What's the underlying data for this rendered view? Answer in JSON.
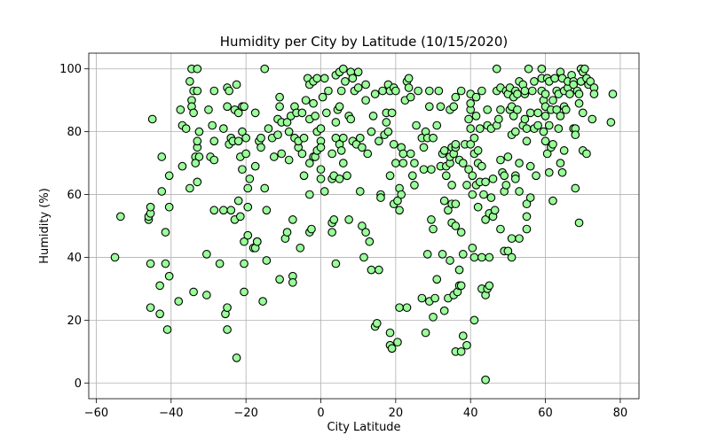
{
  "chart_data": {
    "type": "scatter",
    "title": "Humidity per City by Latitude (10/15/2020)",
    "xlabel": "City Latitude",
    "ylabel": "Humidity (%)",
    "xlim": [
      -62,
      85
    ],
    "ylim": [
      -5,
      105
    ],
    "xticks": [
      -60,
      -40,
      -20,
      0,
      20,
      40,
      60,
      80
    ],
    "yticks": [
      0,
      20,
      40,
      60,
      80,
      100
    ],
    "grid": true,
    "marker_color": "#99ff99",
    "marker_edge": "#000000",
    "points": [
      [
        -55,
        40
      ],
      [
        -53.5,
        53
      ],
      [
        -46,
        52
      ],
      [
        -46,
        53
      ],
      [
        -45.5,
        54
      ],
      [
        -45.5,
        56
      ],
      [
        -45.5,
        24
      ],
      [
        -45.5,
        38
      ],
      [
        -45,
        84
      ],
      [
        -42.5,
        61
      ],
      [
        -42.5,
        72
      ],
      [
        -43,
        31
      ],
      [
        -43,
        22
      ],
      [
        -41.5,
        48
      ],
      [
        -41.5,
        38
      ],
      [
        -40.5,
        56
      ],
      [
        -40.5,
        66
      ],
      [
        -41,
        17
      ],
      [
        -40.5,
        34
      ],
      [
        -38,
        26
      ],
      [
        -37.5,
        87
      ],
      [
        -37,
        82
      ],
      [
        -37,
        69
      ],
      [
        -36,
        81
      ],
      [
        -35,
        96
      ],
      [
        -34.5,
        100
      ],
      [
        -34.5,
        90
      ],
      [
        -34.5,
        88
      ],
      [
        -34,
        86
      ],
      [
        -33.5,
        72
      ],
      [
        -35,
        62
      ],
      [
        -34,
        29
      ],
      [
        -34,
        93
      ],
      [
        -33,
        93
      ],
      [
        -33,
        100
      ],
      [
        -33,
        64
      ],
      [
        -33,
        75
      ],
      [
        -33,
        77
      ],
      [
        -32.5,
        80
      ],
      [
        -32.5,
        72
      ],
      [
        -33.5,
        70
      ],
      [
        -30.5,
        28
      ],
      [
        -30,
        87
      ],
      [
        -30.5,
        41
      ],
      [
        -29.5,
        72
      ],
      [
        -29,
        82
      ],
      [
        -28.5,
        93
      ],
      [
        -28.5,
        55
      ],
      [
        -28.5,
        77
      ],
      [
        -28.5,
        71
      ],
      [
        -27,
        38
      ],
      [
        -26,
        81
      ],
      [
        -26,
        55
      ],
      [
        -25.5,
        22
      ],
      [
        -25,
        24
      ],
      [
        -25,
        17
      ],
      [
        -25,
        94
      ],
      [
        -25,
        88
      ],
      [
        -24.5,
        93
      ],
      [
        -24.5,
        76
      ],
      [
        -24,
        78
      ],
      [
        -24,
        55
      ],
      [
        -23.5,
        77
      ],
      [
        -23,
        52
      ],
      [
        -23,
        87
      ],
      [
        -22.5,
        8
      ],
      [
        -22.5,
        95
      ],
      [
        -22,
        86
      ],
      [
        -22,
        77
      ],
      [
        -22,
        58
      ],
      [
        -21.5,
        72
      ],
      [
        -21.5,
        53
      ],
      [
        -21,
        68
      ],
      [
        -21,
        88
      ],
      [
        -21,
        80
      ],
      [
        -20.5,
        88
      ],
      [
        -20.5,
        45
      ],
      [
        -20.5,
        38
      ],
      [
        -20.5,
        29
      ],
      [
        -20,
        78
      ],
      [
        -20,
        73
      ],
      [
        -19.5,
        62
      ],
      [
        -19.5,
        56
      ],
      [
        -19.5,
        47
      ],
      [
        -19,
        65
      ],
      [
        -18,
        43
      ],
      [
        -17.5,
        86
      ],
      [
        -17.5,
        69
      ],
      [
        -17.5,
        43
      ],
      [
        -17,
        45
      ],
      [
        -17,
        45
      ],
      [
        -16.5,
        77
      ],
      [
        -16,
        78
      ],
      [
        -16,
        75
      ],
      [
        -15.5,
        26
      ],
      [
        -15,
        100
      ],
      [
        -15,
        62
      ],
      [
        -14.5,
        39
      ],
      [
        -14.5,
        55
      ],
      [
        -14,
        81
      ],
      [
        -13,
        78
      ],
      [
        -12.5,
        72
      ],
      [
        -11.5,
        84
      ],
      [
        -11.5,
        79
      ],
      [
        -11,
        91
      ],
      [
        -11,
        88
      ],
      [
        -11,
        33
      ],
      [
        -10.5,
        73
      ],
      [
        -10.5,
        83
      ],
      [
        -9.5,
        46
      ],
      [
        -9,
        48
      ],
      [
        -9,
        83
      ],
      [
        -8.5,
        71
      ],
      [
        -8.5,
        80
      ],
      [
        -8,
        85
      ],
      [
        -7.5,
        52
      ],
      [
        -7.5,
        34
      ],
      [
        -7.5,
        32
      ],
      [
        -7,
        88
      ],
      [
        -7,
        78
      ],
      [
        -6.5,
        86
      ],
      [
        -6,
        75
      ],
      [
        -6,
        77
      ],
      [
        -5.5,
        43
      ],
      [
        -5,
        73
      ],
      [
        -5,
        86
      ],
      [
        -4.5,
        66
      ],
      [
        -4.5,
        78
      ],
      [
        -4,
        90
      ],
      [
        -3.5,
        97
      ],
      [
        -3,
        95
      ],
      [
        -3,
        60
      ],
      [
        -3,
        84
      ],
      [
        -3,
        70
      ],
      [
        -3,
        48
      ],
      [
        -2.5,
        49
      ],
      [
        -2,
        96
      ],
      [
        -2,
        89
      ],
      [
        -2,
        72
      ],
      [
        -1.5,
        72
      ],
      [
        -1.5,
        85
      ],
      [
        -1,
        97
      ],
      [
        -1,
        74
      ],
      [
        -1,
        80
      ],
      [
        0,
        77
      ],
      [
        0,
        65
      ],
      [
        0,
        75
      ],
      [
        0,
        81
      ],
      [
        0,
        68
      ],
      [
        0.5,
        91
      ],
      [
        1,
        61
      ],
      [
        1,
        97
      ],
      [
        1.5,
        86
      ],
      [
        2,
        93
      ],
      [
        3,
        48
      ],
      [
        3,
        51
      ],
      [
        3,
        73
      ],
      [
        3,
        65
      ],
      [
        3.5,
        52
      ],
      [
        3.5,
        66
      ],
      [
        4,
        38
      ],
      [
        4,
        78
      ],
      [
        4,
        98
      ],
      [
        4,
        83
      ],
      [
        4.5,
        87
      ],
      [
        5,
        88
      ],
      [
        5,
        99
      ],
      [
        5,
        65
      ],
      [
        5,
        76
      ],
      [
        5.5,
        93
      ],
      [
        5.5,
        74
      ],
      [
        6,
        100
      ],
      [
        6,
        78
      ],
      [
        6,
        70
      ],
      [
        6.5,
        96
      ],
      [
        7,
        66
      ],
      [
        7.5,
        85
      ],
      [
        7.5,
        52
      ],
      [
        8,
        99
      ],
      [
        8,
        84
      ],
      [
        8.5,
        97
      ],
      [
        8.5,
        77
      ],
      [
        9,
        93
      ],
      [
        9.5,
        76
      ],
      [
        10,
        99
      ],
      [
        10,
        94
      ],
      [
        10.5,
        61
      ],
      [
        10.5,
        78
      ],
      [
        11,
        75
      ],
      [
        11,
        50
      ],
      [
        11.5,
        40
      ],
      [
        12,
        95
      ],
      [
        12,
        90
      ],
      [
        12,
        48
      ],
      [
        12.5,
        73
      ],
      [
        13,
        45
      ],
      [
        13.5,
        36
      ],
      [
        13.5,
        80
      ],
      [
        14,
        85
      ],
      [
        14.5,
        92
      ],
      [
        14.5,
        18
      ],
      [
        15,
        19
      ],
      [
        15.5,
        36
      ],
      [
        15.5,
        77
      ],
      [
        16,
        60
      ],
      [
        16,
        59
      ],
      [
        16.5,
        93
      ],
      [
        17,
        79
      ],
      [
        17.5,
        83
      ],
      [
        17.5,
        86
      ],
      [
        18,
        95
      ],
      [
        18,
        80
      ],
      [
        18.5,
        93
      ],
      [
        18.5,
        66
      ],
      [
        18.5,
        12
      ],
      [
        18.5,
        16
      ],
      [
        19,
        11
      ],
      [
        19,
        86
      ],
      [
        19.5,
        94
      ],
      [
        19.5,
        76
      ],
      [
        19.5,
        57
      ],
      [
        20,
        70
      ],
      [
        20,
        93
      ],
      [
        20.5,
        58
      ],
      [
        20.5,
        13
      ],
      [
        21,
        24
      ],
      [
        21,
        55
      ],
      [
        21,
        62
      ],
      [
        21.5,
        60
      ],
      [
        21.5,
        75
      ],
      [
        22,
        73
      ],
      [
        22,
        70
      ],
      [
        22.5,
        90
      ],
      [
        23,
        24
      ],
      [
        23,
        96
      ],
      [
        23.5,
        94
      ],
      [
        23.5,
        97
      ],
      [
        24,
        91
      ],
      [
        24,
        73
      ],
      [
        24.5,
        66
      ],
      [
        25,
        63
      ],
      [
        25,
        70
      ],
      [
        25.5,
        82
      ],
      [
        26,
        93
      ],
      [
        27,
        78
      ],
      [
        27,
        27
      ],
      [
        27.5,
        75
      ],
      [
        27.5,
        68
      ],
      [
        28,
        16
      ],
      [
        28,
        80
      ],
      [
        28.5,
        78
      ],
      [
        28.5,
        41
      ],
      [
        29,
        93
      ],
      [
        29,
        88
      ],
      [
        29,
        26
      ],
      [
        29.5,
        68
      ],
      [
        29.5,
        52
      ],
      [
        30,
        49
      ],
      [
        30,
        21
      ],
      [
        30,
        78
      ],
      [
        30.5,
        27
      ],
      [
        31,
        33
      ],
      [
        31,
        82
      ],
      [
        31.5,
        93
      ],
      [
        32,
        69
      ],
      [
        32,
        88
      ],
      [
        32.5,
        73
      ],
      [
        32.5,
        41
      ],
      [
        33,
        23
      ],
      [
        33,
        58
      ],
      [
        33,
        74
      ],
      [
        33.5,
        66
      ],
      [
        33.5,
        69
      ],
      [
        34,
        27
      ],
      [
        34,
        55
      ],
      [
        34.5,
        70
      ],
      [
        34.5,
        39
      ],
      [
        34.5,
        72
      ],
      [
        34.5,
        87
      ],
      [
        35,
        51
      ],
      [
        35,
        57
      ],
      [
        35,
        75
      ],
      [
        35,
        63
      ],
      [
        35.5,
        28
      ],
      [
        35.5,
        73
      ],
      [
        35.5,
        88
      ],
      [
        36,
        91
      ],
      [
        36,
        75
      ],
      [
        36,
        57
      ],
      [
        36,
        50
      ],
      [
        36,
        10
      ],
      [
        36,
        76
      ],
      [
        36.5,
        29
      ],
      [
        37,
        31
      ],
      [
        37,
        71
      ],
      [
        37,
        36
      ],
      [
        37.5,
        10
      ],
      [
        37.5,
        31
      ],
      [
        37.5,
        48
      ],
      [
        37.5,
        93
      ],
      [
        38,
        15
      ],
      [
        38,
        70
      ],
      [
        38,
        41
      ],
      [
        38.5,
        76
      ],
      [
        39,
        63
      ],
      [
        39,
        12
      ],
      [
        39.5,
        84
      ],
      [
        39.5,
        68
      ],
      [
        40,
        81
      ],
      [
        40,
        87
      ],
      [
        40,
        89
      ],
      [
        40,
        76
      ],
      [
        40,
        92
      ],
      [
        40.5,
        43
      ],
      [
        40.5,
        60
      ],
      [
        40.5,
        66
      ],
      [
        41,
        20
      ],
      [
        41,
        40
      ],
      [
        41,
        78
      ],
      [
        41,
        73
      ],
      [
        41.5,
        91
      ],
      [
        41.5,
        63
      ],
      [
        41.5,
        85
      ],
      [
        42,
        74
      ],
      [
        42,
        70
      ],
      [
        42,
        56
      ],
      [
        42.5,
        81
      ],
      [
        42.5,
        64
      ],
      [
        43,
        93
      ],
      [
        43,
        69
      ],
      [
        43,
        30
      ],
      [
        43,
        40
      ],
      [
        43.5,
        60
      ],
      [
        44,
        64
      ],
      [
        44,
        1
      ],
      [
        44,
        28
      ],
      [
        44,
        52
      ],
      [
        44.5,
        30
      ],
      [
        44.5,
        82
      ],
      [
        44.5,
        87
      ],
      [
        45,
        31
      ],
      [
        45,
        54
      ],
      [
        45,
        40
      ],
      [
        45.5,
        59
      ],
      [
        45.5,
        81
      ],
      [
        46,
        65
      ],
      [
        46,
        53
      ],
      [
        46.5,
        55
      ],
      [
        47,
        93
      ],
      [
        47,
        82
      ],
      [
        47,
        100
      ],
      [
        47.5,
        84
      ],
      [
        48,
        87
      ],
      [
        48,
        94
      ],
      [
        48,
        71
      ],
      [
        48,
        49
      ],
      [
        48.5,
        67
      ],
      [
        49,
        66
      ],
      [
        49,
        42
      ],
      [
        49,
        61
      ],
      [
        49.5,
        93
      ],
      [
        49.5,
        63
      ],
      [
        50,
        42
      ],
      [
        50,
        72
      ],
      [
        50,
        92
      ],
      [
        50.5,
        94
      ],
      [
        50.5,
        87
      ],
      [
        51,
        88
      ],
      [
        51,
        46
      ],
      [
        51,
        79
      ],
      [
        51,
        40
      ],
      [
        51.5,
        91
      ],
      [
        51.5,
        85
      ],
      [
        52,
        66
      ],
      [
        52,
        65
      ],
      [
        52,
        93
      ],
      [
        52,
        80
      ],
      [
        52.5,
        92
      ],
      [
        52.5,
        87
      ],
      [
        53,
        96
      ],
      [
        53,
        70
      ],
      [
        53,
        61
      ],
      [
        53,
        46
      ],
      [
        54,
        95
      ],
      [
        54,
        82
      ],
      [
        54.5,
        92
      ],
      [
        54.5,
        93
      ],
      [
        54.5,
        84
      ],
      [
        55,
        77
      ],
      [
        55,
        57
      ],
      [
        55,
        53
      ],
      [
        55,
        49
      ],
      [
        55,
        81
      ],
      [
        55.5,
        100
      ],
      [
        56,
        86
      ],
      [
        56,
        69
      ],
      [
        56,
        59
      ],
      [
        56.5,
        93
      ],
      [
        57,
        96
      ],
      [
        57,
        81
      ],
      [
        57.5,
        66
      ],
      [
        58,
        82
      ],
      [
        58,
        86
      ],
      [
        59,
        93
      ],
      [
        59,
        100
      ],
      [
        59,
        97
      ],
      [
        59.5,
        90
      ],
      [
        59.5,
        80
      ],
      [
        60,
        85
      ],
      [
        60,
        92
      ],
      [
        60,
        88
      ],
      [
        60,
        77
      ],
      [
        60.5,
        97
      ],
      [
        60.5,
        73
      ],
      [
        61,
        67
      ],
      [
        61,
        82
      ],
      [
        61,
        96
      ],
      [
        61.5,
        87
      ],
      [
        61.5,
        75
      ],
      [
        62,
        58
      ],
      [
        62,
        76
      ],
      [
        62,
        90
      ],
      [
        62.5,
        97
      ],
      [
        63,
        87
      ],
      [
        63,
        93
      ],
      [
        63.5,
        92
      ],
      [
        63.5,
        81
      ],
      [
        64,
        99
      ],
      [
        64,
        85
      ],
      [
        64,
        70
      ],
      [
        64.5,
        97
      ],
      [
        64.5,
        67
      ],
      [
        65,
        93
      ],
      [
        65,
        88
      ],
      [
        65,
        74
      ],
      [
        65.5,
        87
      ],
      [
        66,
        94
      ],
      [
        66,
        96
      ],
      [
        66.5,
        92
      ],
      [
        67,
        98
      ],
      [
        67.5,
        96
      ],
      [
        67.5,
        95
      ],
      [
        67.5,
        81
      ],
      [
        68,
        62
      ],
      [
        68,
        81
      ],
      [
        68,
        79
      ],
      [
        68.5,
        93
      ],
      [
        69,
        89
      ],
      [
        69,
        92
      ],
      [
        69,
        51
      ],
      [
        69.5,
        100
      ],
      [
        69.5,
        96
      ],
      [
        70,
        99
      ],
      [
        70,
        74
      ],
      [
        70,
        86
      ],
      [
        70.5,
        100
      ],
      [
        71,
        97
      ],
      [
        71,
        73
      ],
      [
        71.5,
        95
      ],
      [
        72,
        96
      ],
      [
        72.5,
        84
      ],
      [
        73,
        94
      ],
      [
        73,
        92
      ],
      [
        77.5,
        83
      ],
      [
        78,
        92
      ]
    ]
  }
}
